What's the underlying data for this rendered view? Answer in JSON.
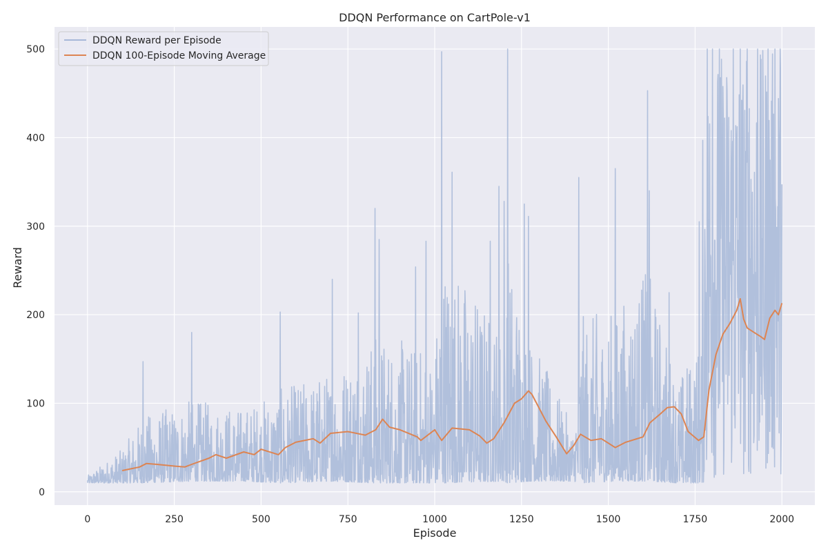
{
  "chart_data": {
    "type": "line",
    "title": "DDQN Performance on CartPole-v1",
    "xlabel": "Episode",
    "ylabel": "Reward",
    "xlim": [
      -95,
      2095
    ],
    "ylim": [
      -15,
      525
    ],
    "x_ticks": [
      0,
      250,
      500,
      750,
      1000,
      1250,
      1500,
      1750,
      2000
    ],
    "y_ticks": [
      0,
      100,
      200,
      300,
      400,
      500
    ],
    "grid": true,
    "legend_position": "top-left",
    "colors": {
      "background": "#eaeaf2",
      "grid": "#ffffff",
      "reward": "#a7b8d8",
      "moving_average": "#dd8452"
    },
    "series": [
      {
        "name": "DDQN Reward per Episode",
        "style": "noisy-band",
        "x_range": [
          0,
          2000
        ],
        "envelope": {
          "x": [
            0,
            100,
            160,
            300,
            450,
            555,
            700,
            830,
            1000,
            1020,
            1200,
            1210,
            1270,
            1400,
            1420,
            1520,
            1613,
            1700,
            1760,
            1790,
            1850,
            1900,
            2000
          ],
          "upper": [
            25,
            80,
            147,
            180,
            163,
            203,
            240,
            320,
            285,
            497,
            330,
            500,
            325,
            120,
            355,
            365,
            453,
            225,
            305,
            500,
            500,
            500,
            500
          ],
          "lower": [
            10,
            10,
            10,
            12,
            12,
            10,
            12,
            10,
            10,
            10,
            12,
            10,
            12,
            12,
            10,
            12,
            12,
            10,
            10,
            12,
            15,
            15,
            20
          ]
        },
        "spikes": [
          [
            160,
            147
          ],
          [
            300,
            180
          ],
          [
            555,
            203
          ],
          [
            705,
            240
          ],
          [
            780,
            202
          ],
          [
            828,
            320
          ],
          [
            840,
            285
          ],
          [
            945,
            254
          ],
          [
            975,
            283
          ],
          [
            1020,
            497
          ],
          [
            1050,
            361
          ],
          [
            1160,
            283
          ],
          [
            1185,
            345
          ],
          [
            1200,
            328
          ],
          [
            1210,
            500
          ],
          [
            1258,
            325
          ],
          [
            1270,
            311
          ],
          [
            1415,
            355
          ],
          [
            1520,
            365
          ],
          [
            1600,
            238
          ],
          [
            1613,
            453
          ],
          [
            1618,
            340
          ],
          [
            1675,
            225
          ],
          [
            1762,
            305
          ],
          [
            1772,
            397
          ],
          [
            1785,
            500
          ],
          [
            1800,
            500
          ],
          [
            1820,
            500
          ],
          [
            1860,
            500
          ],
          [
            1880,
            500
          ],
          [
            1900,
            500
          ],
          [
            1930,
            500
          ],
          [
            1960,
            500
          ],
          [
            1980,
            500
          ],
          [
            1995,
            500
          ]
        ]
      },
      {
        "name": "DDQN 100-Episode Moving Average",
        "x": [
          100,
          150,
          170,
          200,
          250,
          280,
          300,
          350,
          370,
          400,
          450,
          480,
          500,
          550,
          570,
          600,
          650,
          670,
          700,
          750,
          800,
          830,
          850,
          870,
          900,
          950,
          960,
          1000,
          1020,
          1050,
          1100,
          1130,
          1150,
          1170,
          1200,
          1230,
          1250,
          1270,
          1280,
          1300,
          1320,
          1350,
          1380,
          1400,
          1420,
          1450,
          1480,
          1500,
          1520,
          1550,
          1600,
          1620,
          1650,
          1670,
          1690,
          1710,
          1730,
          1760,
          1775,
          1790,
          1810,
          1830,
          1850,
          1870,
          1880,
          1890,
          1900,
          1920,
          1940,
          1950,
          1965,
          1980,
          1990,
          2000
        ],
        "y": [
          24,
          28,
          32,
          31,
          29,
          28,
          31,
          38,
          42,
          38,
          45,
          42,
          48,
          42,
          50,
          56,
          60,
          55,
          66,
          68,
          64,
          70,
          82,
          73,
          70,
          62,
          58,
          70,
          58,
          72,
          70,
          63,
          55,
          60,
          78,
          100,
          105,
          114,
          110,
          95,
          80,
          62,
          43,
          52,
          65,
          58,
          60,
          55,
          50,
          56,
          62,
          78,
          88,
          95,
          96,
          88,
          68,
          58,
          62,
          115,
          155,
          178,
          190,
          205,
          218,
          195,
          185,
          180,
          175,
          172,
          196,
          205,
          200,
          213
        ]
      }
    ]
  }
}
